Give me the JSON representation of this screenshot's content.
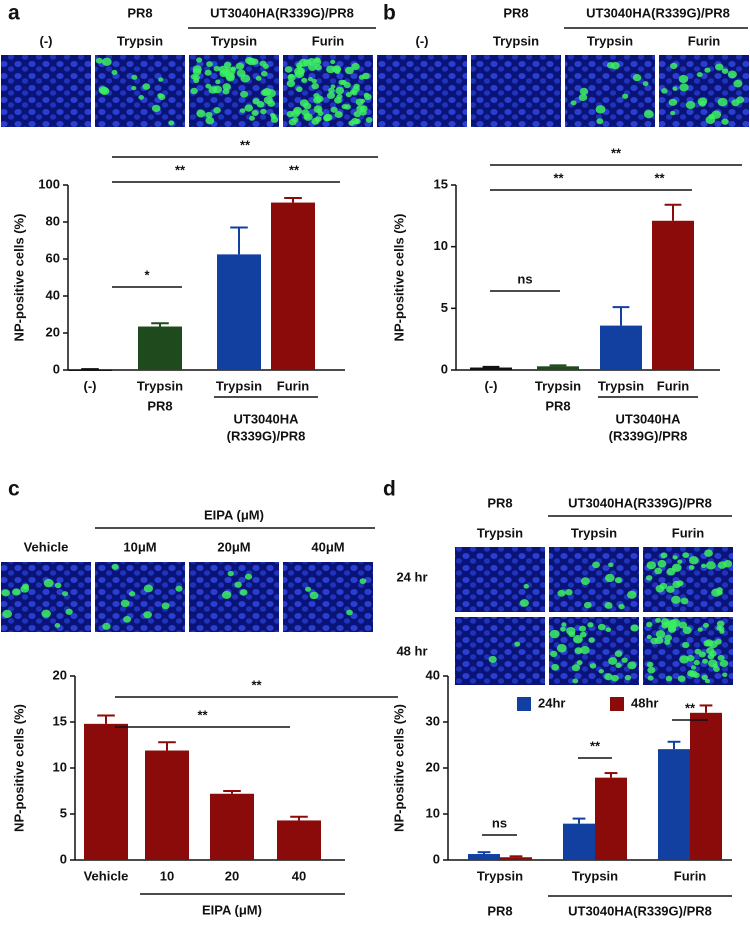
{
  "chart_data": [
    {
      "type": "bar",
      "label": "a",
      "image_header": {
        "groups": [
          "PR8",
          "UT3040HA(R339G)/PR8"
        ],
        "columns": [
          "(-)",
          "Trypsin",
          "Trypsin",
          "Furin"
        ]
      },
      "y_label": "NP-positive cells (%)",
      "categories": [
        "(-)",
        "Trypsin",
        "Trypsin",
        "Furin"
      ],
      "values": [
        0.3,
        23.5,
        62.5,
        90.5
      ],
      "errors": [
        0.2,
        1.8,
        14.5,
        2.5
      ],
      "colors": [
        "#111111",
        "#1e4a1e",
        "#1240a0",
        "#8b0a0a"
      ],
      "ylim": [
        0,
        100
      ],
      "yticks": [
        0,
        20,
        40,
        60,
        80,
        100
      ],
      "group_labels": [
        [
          "PR8"
        ],
        [
          "UT3040HA",
          "(R339G)/PR8"
        ]
      ],
      "annotations": [
        "**",
        "**",
        "**",
        "*"
      ]
    },
    {
      "type": "bar",
      "label": "b",
      "image_header": {
        "groups": [
          "PR8",
          "UT3040HA(R339G)/PR8"
        ],
        "columns": [
          "(-)",
          "Trypsin",
          "Trypsin",
          "Furin"
        ]
      },
      "y_label": "NP-positive cells (%)",
      "categories": [
        "(-)",
        "Trypsin",
        "Trypsin",
        "Furin"
      ],
      "values": [
        0.2,
        0.3,
        3.6,
        12.1
      ],
      "errors": [
        0.05,
        0.08,
        1.5,
        1.3
      ],
      "colors": [
        "#111111",
        "#1e4a1e",
        "#1240a0",
        "#8b0a0a"
      ],
      "ylim": [
        0,
        15
      ],
      "yticks": [
        0,
        5,
        10,
        15
      ],
      "group_labels": [
        [
          "PR8"
        ],
        [
          "UT3040HA",
          "(R339G)/PR8"
        ]
      ],
      "annotations": [
        "**",
        "**",
        "**",
        "ns"
      ]
    },
    {
      "type": "bar",
      "label": "c",
      "image_header": {
        "groups": [
          "EIPA (μM)"
        ],
        "columns": [
          "Vehicle",
          "10μM",
          "20μM",
          "40μM"
        ]
      },
      "y_label": "NP-positive cells (%)",
      "categories": [
        "Vehicle",
        "10",
        "20",
        "40"
      ],
      "values": [
        14.8,
        11.9,
        7.2,
        4.3
      ],
      "errors": [
        0.9,
        0.9,
        0.3,
        0.4
      ],
      "colors": [
        "#8b0a0a",
        "#8b0a0a",
        "#8b0a0a",
        "#8b0a0a"
      ],
      "ylim": [
        0,
        20
      ],
      "yticks": [
        0,
        5,
        10,
        15,
        20
      ],
      "group_labels": [
        [
          "EIPA (μM)"
        ]
      ],
      "annotations": [
        "**",
        "**"
      ]
    },
    {
      "type": "grouped_bar",
      "label": "d",
      "image_header": {
        "groups": [
          "PR8",
          "UT3040HA(R339G)/PR8"
        ],
        "columns": [
          "Trypsin",
          "Trypsin",
          "Furin"
        ],
        "rows": [
          "24 hr",
          "48 hr"
        ]
      },
      "y_label": "NP-positive cells (%)",
      "categories": [
        "Trypsin",
        "Trypsin",
        "Furin"
      ],
      "series": [
        {
          "name": "24hr",
          "color": "#1240a0",
          "values": [
            1.3,
            7.9,
            24.1
          ],
          "errors": [
            0.4,
            1.1,
            1.6
          ]
        },
        {
          "name": "48hr",
          "color": "#8b0a0a",
          "values": [
            0.6,
            17.9,
            32
          ],
          "errors": [
            0.2,
            1,
            1.6
          ]
        }
      ],
      "ylim": [
        0,
        40
      ],
      "yticks": [
        0,
        10,
        20,
        30,
        40
      ],
      "group_labels": [
        [
          "PR8"
        ],
        [
          "UT3040HA(R339G)/PR8"
        ]
      ],
      "annotations": [
        "ns",
        "**",
        "**"
      ]
    }
  ]
}
